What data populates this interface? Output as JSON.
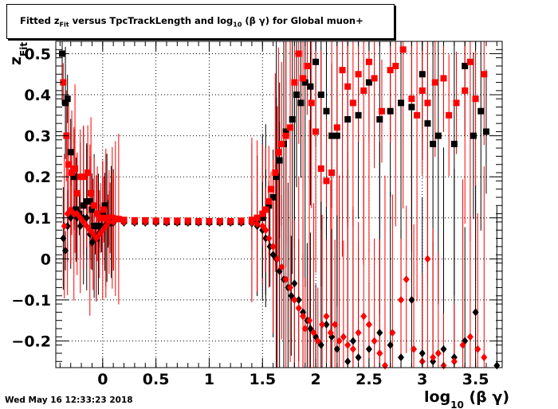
{
  "title": {
    "p1": "Fitted  z",
    "sub1": "Fit",
    "p2": "  versus TpcTrackLength and log",
    "sub2": "10",
    "p3": " (β γ) for Global muon+"
  },
  "timestamp": "Wed May 16 12:33:23 2018",
  "chart_data": {
    "type": "scatter",
    "title": "Fitted z_Fit versus TpcTrackLength and log10 (β γ) for Global muon+",
    "xlabel": "log10 (β γ)",
    "ylabel": "z_Fit",
    "xlim": [
      -0.44,
      3.75
    ],
    "ylim": [
      -0.265,
      0.53
    ],
    "xticks": [
      "0",
      "0.5",
      "1",
      "1.5",
      "2",
      "2.5",
      "3",
      "3.5"
    ],
    "xtick_values": [
      0,
      0.5,
      1,
      1.5,
      2,
      2.5,
      3,
      3.5
    ],
    "yticks": [
      "−0.2",
      "−0.1",
      "0",
      "0.1",
      "0.2",
      "0.3",
      "0.4",
      "0.5"
    ],
    "ytick_values": [
      -0.2,
      -0.1,
      0,
      0.1,
      0.2,
      0.3,
      0.4,
      0.5
    ],
    "grid": true,
    "colors": {
      "series_a": "#000000",
      "series_b": "#ff0000"
    },
    "series": [
      {
        "marker": "square",
        "color": "#000000",
        "points": [
          [
            -0.38,
            0.5
          ],
          [
            -0.35,
            0.38
          ],
          [
            -0.33,
            0.39
          ],
          [
            -0.3,
            0.26
          ],
          [
            -0.27,
            0.2
          ],
          [
            -0.25,
            0.12
          ],
          [
            -0.22,
            0.11
          ],
          [
            -0.18,
            0.13
          ],
          [
            -0.15,
            0.14
          ],
          [
            -0.12,
            0.14
          ],
          [
            -0.1,
            0.12
          ],
          [
            -0.08,
            0.08
          ],
          [
            -0.06,
            0.05
          ],
          [
            -0.03,
            0.08
          ],
          [
            0.0,
            0.11
          ],
          [
            0.02,
            0.13
          ],
          [
            0.04,
            0.1
          ],
          [
            0.06,
            0.1
          ],
          [
            0.08,
            0.09
          ],
          [
            0.1,
            0.095
          ],
          [
            0.2,
            0.093
          ],
          [
            0.3,
            0.091
          ],
          [
            0.4,
            0.091
          ],
          [
            0.5,
            0.091
          ],
          [
            0.6,
            0.09
          ],
          [
            0.7,
            0.09
          ],
          [
            0.8,
            0.09
          ],
          [
            0.9,
            0.09
          ],
          [
            1.0,
            0.09
          ],
          [
            1.1,
            0.09
          ],
          [
            1.2,
            0.09
          ],
          [
            1.3,
            0.09
          ],
          [
            1.4,
            0.092
          ],
          [
            1.45,
            0.095
          ],
          [
            1.5,
            0.1
          ],
          [
            1.53,
            0.12
          ],
          [
            1.56,
            0.13
          ],
          [
            1.6,
            0.15
          ],
          [
            1.63,
            0.2
          ],
          [
            1.66,
            0.24
          ],
          [
            1.7,
            0.28
          ],
          [
            1.72,
            0.31
          ],
          [
            1.78,
            0.34
          ],
          [
            1.82,
            0.4
          ],
          [
            1.86,
            0.38
          ],
          [
            1.9,
            0.43
          ],
          [
            1.95,
            0.42
          ],
          [
            2.0,
            0.48
          ],
          [
            2.05,
            0.4
          ],
          [
            2.1,
            0.36
          ],
          [
            2.15,
            0.3
          ],
          [
            2.2,
            0.3
          ],
          [
            2.3,
            0.34
          ],
          [
            2.4,
            0.35
          ],
          [
            2.5,
            0.43
          ],
          [
            2.6,
            0.34
          ],
          [
            2.7,
            0.36
          ],
          [
            2.8,
            0.38
          ],
          [
            2.9,
            0.37
          ],
          [
            3.0,
            0.45
          ],
          [
            3.05,
            0.33
          ],
          [
            3.1,
            0.28
          ],
          [
            3.15,
            0.3
          ],
          [
            3.3,
            0.28
          ],
          [
            3.4,
            0.47
          ],
          [
            3.48,
            0.3
          ],
          [
            3.55,
            0.36
          ],
          [
            3.6,
            0.31
          ]
        ]
      },
      {
        "marker": "square",
        "color": "#ff0000",
        "points": [
          [
            -0.37,
            0.43
          ],
          [
            -0.34,
            0.3
          ],
          [
            -0.32,
            0.23
          ],
          [
            -0.29,
            0.21
          ],
          [
            -0.26,
            0.22
          ],
          [
            -0.24,
            0.16
          ],
          [
            -0.21,
            0.2
          ],
          [
            -0.18,
            0.2
          ],
          [
            -0.14,
            0.21
          ],
          [
            -0.11,
            0.16
          ],
          [
            -0.08,
            0.13
          ],
          [
            -0.05,
            0.11
          ],
          [
            -0.02,
            0.1
          ],
          [
            0.01,
            0.12
          ],
          [
            0.03,
            0.1
          ],
          [
            0.05,
            0.095
          ],
          [
            0.07,
            0.1
          ],
          [
            0.09,
            0.1
          ],
          [
            0.12,
            0.098
          ],
          [
            0.15,
            0.097
          ],
          [
            0.2,
            0.095
          ],
          [
            0.3,
            0.094
          ],
          [
            0.4,
            0.094
          ],
          [
            0.5,
            0.093
          ],
          [
            0.6,
            0.093
          ],
          [
            0.7,
            0.093
          ],
          [
            0.8,
            0.093
          ],
          [
            0.9,
            0.092
          ],
          [
            1.0,
            0.092
          ],
          [
            1.1,
            0.092
          ],
          [
            1.2,
            0.092
          ],
          [
            1.3,
            0.093
          ],
          [
            1.4,
            0.095
          ],
          [
            1.45,
            0.1
          ],
          [
            1.5,
            0.11
          ],
          [
            1.53,
            0.12
          ],
          [
            1.56,
            0.14
          ],
          [
            1.58,
            0.17
          ],
          [
            1.62,
            0.21
          ],
          [
            1.65,
            0.26
          ],
          [
            1.68,
            0.28
          ],
          [
            1.72,
            0.3
          ],
          [
            1.76,
            0.32
          ],
          [
            1.8,
            0.43
          ],
          [
            1.84,
            0.5
          ],
          [
            1.88,
            0.44
          ],
          [
            1.92,
            0.47
          ],
          [
            1.96,
            0.38
          ],
          [
            2.0,
            0.31
          ],
          [
            2.05,
            0.22
          ],
          [
            2.1,
            0.19
          ],
          [
            2.15,
            0.21
          ],
          [
            2.2,
            0.32
          ],
          [
            2.25,
            0.46
          ],
          [
            2.3,
            0.42
          ],
          [
            2.35,
            0.38
          ],
          [
            2.4,
            0.45
          ],
          [
            2.45,
            0.41
          ],
          [
            2.5,
            0.48
          ],
          [
            2.55,
            0.44
          ],
          [
            2.62,
            0.36
          ],
          [
            2.7,
            0.46
          ],
          [
            2.75,
            0.47
          ],
          [
            2.82,
            0.51
          ],
          [
            2.9,
            0.39
          ],
          [
            2.95,
            0.35
          ],
          [
            3.0,
            0.41
          ],
          [
            3.05,
            0.38
          ],
          [
            3.12,
            0.43
          ],
          [
            3.2,
            0.44
          ],
          [
            3.25,
            0.35
          ],
          [
            3.32,
            0.38
          ],
          [
            3.4,
            0.41
          ],
          [
            3.45,
            0.48
          ],
          [
            3.5,
            0.39
          ],
          [
            3.58,
            0.45
          ]
        ]
      },
      {
        "marker": "diamond",
        "color": "#000000",
        "points": [
          [
            -0.37,
            0.05
          ],
          [
            -0.35,
            0.02
          ],
          [
            -0.33,
            0.08
          ],
          [
            -0.3,
            0.1
          ],
          [
            -0.27,
            0.12
          ],
          [
            -0.24,
            0.1
          ],
          [
            -0.21,
            0.08
          ],
          [
            -0.18,
            0.1
          ],
          [
            -0.15,
            0.1
          ],
          [
            -0.12,
            0.06
          ],
          [
            -0.1,
            0.04
          ],
          [
            -0.07,
            0.05
          ],
          [
            -0.04,
            0.06
          ],
          [
            -0.01,
            0.07
          ],
          [
            0.02,
            0.08
          ],
          [
            0.05,
            0.085
          ],
          [
            0.08,
            0.087
          ],
          [
            0.1,
            0.088
          ],
          [
            0.2,
            0.088
          ],
          [
            0.3,
            0.088
          ],
          [
            0.4,
            0.088
          ],
          [
            0.5,
            0.088
          ],
          [
            0.6,
            0.088
          ],
          [
            0.7,
            0.088
          ],
          [
            0.8,
            0.088
          ],
          [
            0.9,
            0.088
          ],
          [
            1.0,
            0.088
          ],
          [
            1.1,
            0.088
          ],
          [
            1.2,
            0.088
          ],
          [
            1.3,
            0.088
          ],
          [
            1.4,
            0.086
          ],
          [
            1.45,
            0.08
          ],
          [
            1.5,
            0.07
          ],
          [
            1.53,
            0.05
          ],
          [
            1.57,
            0.03
          ],
          [
            1.6,
            0.01
          ],
          [
            1.63,
            -0.0
          ],
          [
            1.66,
            -0.03
          ],
          [
            1.7,
            -0.05
          ],
          [
            1.74,
            -0.07
          ],
          [
            1.77,
            -0.09
          ],
          [
            1.8,
            -0.06
          ],
          [
            1.84,
            -0.1
          ],
          [
            1.88,
            -0.13
          ],
          [
            1.92,
            -0.15
          ],
          [
            1.95,
            -0.17
          ],
          [
            2.0,
            -0.19
          ],
          [
            2.05,
            -0.21
          ],
          [
            2.1,
            -0.16
          ],
          [
            2.15,
            -0.19
          ],
          [
            2.2,
            -0.22
          ],
          [
            2.3,
            -0.25
          ],
          [
            2.35,
            -0.2
          ],
          [
            2.4,
            -0.24
          ],
          [
            2.5,
            -0.22
          ],
          [
            2.6,
            -0.18
          ],
          [
            2.7,
            -0.21
          ],
          [
            2.8,
            -0.24
          ],
          [
            2.9,
            -0.1
          ],
          [
            3.0,
            -0.23
          ],
          [
            3.1,
            -0.25
          ],
          [
            3.2,
            -0.22
          ],
          [
            3.3,
            -0.24
          ],
          [
            3.4,
            -0.2
          ],
          [
            3.5,
            -0.13
          ],
          [
            3.7,
            -0.26
          ]
        ]
      },
      {
        "marker": "diamond",
        "color": "#ff0000",
        "points": [
          [
            -0.36,
            0.08
          ],
          [
            -0.33,
            0.11
          ],
          [
            -0.3,
            0.12
          ],
          [
            -0.27,
            0.11
          ],
          [
            -0.24,
            0.11
          ],
          [
            -0.21,
            0.1
          ],
          [
            -0.18,
            0.09
          ],
          [
            -0.15,
            0.08
          ],
          [
            -0.12,
            0.07
          ],
          [
            -0.09,
            0.06
          ],
          [
            -0.06,
            0.05
          ],
          [
            -0.03,
            0.06
          ],
          [
            0.0,
            0.07
          ],
          [
            0.03,
            0.08
          ],
          [
            0.06,
            0.09
          ],
          [
            0.1,
            0.09
          ],
          [
            0.2,
            0.09
          ],
          [
            0.3,
            0.09
          ],
          [
            0.4,
            0.09
          ],
          [
            0.5,
            0.09
          ],
          [
            0.6,
            0.09
          ],
          [
            0.7,
            0.09
          ],
          [
            0.8,
            0.09
          ],
          [
            0.9,
            0.09
          ],
          [
            1.0,
            0.09
          ],
          [
            1.1,
            0.09
          ],
          [
            1.2,
            0.09
          ],
          [
            1.3,
            0.09
          ],
          [
            1.4,
            0.088
          ],
          [
            1.45,
            0.085
          ],
          [
            1.5,
            0.08
          ],
          [
            1.53,
            0.07
          ],
          [
            1.56,
            0.05
          ],
          [
            1.6,
            0.03
          ],
          [
            1.64,
            0.0
          ],
          [
            1.68,
            -0.02
          ],
          [
            1.72,
            -0.05
          ],
          [
            1.76,
            -0.07
          ],
          [
            1.8,
            -0.1
          ],
          [
            1.84,
            -0.12
          ],
          [
            1.88,
            -0.14
          ],
          [
            1.9,
            -0.17
          ],
          [
            1.94,
            -0.15
          ],
          [
            1.98,
            -0.18
          ],
          [
            2.02,
            -0.2
          ],
          [
            2.06,
            -0.16
          ],
          [
            2.1,
            -0.14
          ],
          [
            2.14,
            -0.18
          ],
          [
            2.18,
            -0.16
          ],
          [
            2.22,
            -0.2
          ],
          [
            2.26,
            -0.19
          ],
          [
            2.3,
            -0.21
          ],
          [
            2.35,
            -0.22
          ],
          [
            2.4,
            -0.18
          ],
          [
            2.45,
            -0.14
          ],
          [
            2.5,
            -0.16
          ],
          [
            2.55,
            -0.2
          ],
          [
            2.6,
            -0.23
          ],
          [
            2.65,
            -0.26
          ],
          [
            2.72,
            -0.18
          ],
          [
            2.8,
            -0.1
          ],
          [
            2.85,
            -0.05
          ],
          [
            2.92,
            -0.22
          ],
          [
            3.0,
            -0.25
          ],
          [
            3.05,
            0.0
          ],
          [
            3.1,
            -0.24
          ],
          [
            3.15,
            -0.23
          ],
          [
            3.2,
            -0.26
          ],
          [
            3.3,
            -0.25
          ],
          [
            3.38,
            -0.21
          ],
          [
            3.45,
            -0.19
          ],
          [
            3.52,
            -0.22
          ],
          [
            3.58,
            -0.24
          ]
        ]
      }
    ]
  }
}
